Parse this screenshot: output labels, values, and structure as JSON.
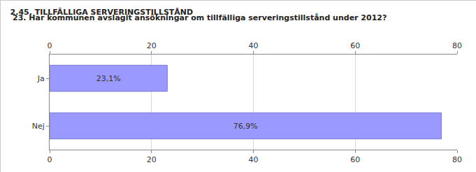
{
  "chart_data": {
    "type": "bar",
    "orientation": "horizontal",
    "title": "2.45. TILLFÄLLIGA SERVERINGSTILLSTÅND",
    "subtitle": "23. Har kommunen avslagit ansökningar om tillfälliga serveringstillstånd under 2012?",
    "categories": [
      "Ja",
      "Nej"
    ],
    "values": [
      23.1,
      76.9
    ],
    "value_labels": [
      "23,1%",
      "76,9%"
    ],
    "color": "#9999ff",
    "xlim": [
      0,
      80
    ],
    "xticks": [
      0,
      20,
      40,
      60,
      80
    ],
    "grid": true,
    "data_labels": true
  }
}
